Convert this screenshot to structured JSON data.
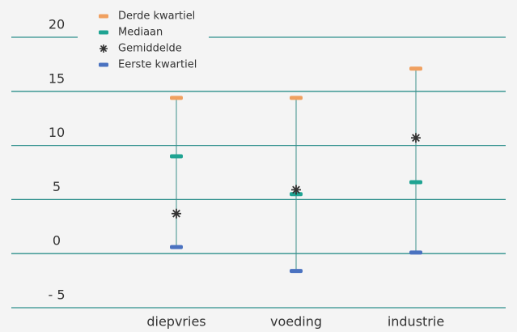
{
  "chart_data": {
    "type": "dot",
    "categories": [
      "diepvries",
      "voeding",
      "industrie"
    ],
    "series": [
      {
        "name": "Derde kwartiel",
        "color": "#f0a060",
        "marker": "dash",
        "values": [
          14.4,
          14.4,
          17.1
        ]
      },
      {
        "name": "Mediaan",
        "color": "#1fa392",
        "marker": "dash",
        "values": [
          9.0,
          5.5,
          6.6
        ]
      },
      {
        "name": "Gemiddelde",
        "color": "#333333",
        "marker": "star",
        "values": [
          3.7,
          5.9,
          10.7
        ]
      },
      {
        "name": "Eerste kwartiel",
        "color": "#4a72c0",
        "marker": "dash",
        "values": [
          0.6,
          -1.6,
          0.1
        ]
      }
    ],
    "ylim": [
      -5,
      20
    ],
    "yticks": [
      {
        "value": -5,
        "label": "- 5"
      },
      0,
      5,
      10,
      15,
      20
    ],
    "grid": true,
    "grid_color": "#2e8f8c",
    "legend": "upper left"
  }
}
